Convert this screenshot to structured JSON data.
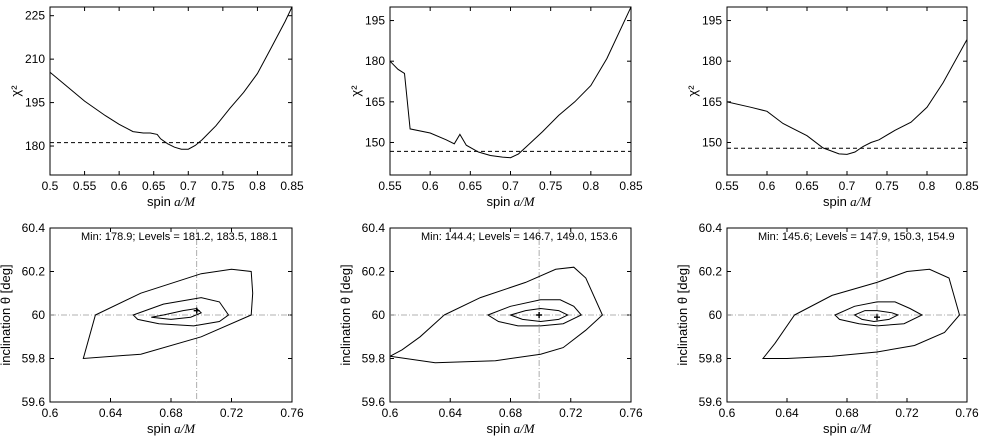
{
  "chart_data": [
    {
      "type": "line",
      "xlabel": "spin a/M",
      "ylabel": "χ²",
      "xlim": [
        0.5,
        0.85
      ],
      "ylim": [
        170,
        228
      ],
      "xticks": [
        "0.5",
        "0.55",
        "0.6",
        "0.65",
        "0.7",
        "0.75",
        "0.8",
        "0.85"
      ],
      "yticks": [
        "180",
        "195",
        "210",
        "225"
      ],
      "series": [
        {
          "style": "solid",
          "x": [
            0.5,
            0.52,
            0.55,
            0.58,
            0.6,
            0.62,
            0.635,
            0.645,
            0.655,
            0.66,
            0.67,
            0.68,
            0.69,
            0.7,
            0.71,
            0.72,
            0.74,
            0.76,
            0.78,
            0.8,
            0.82,
            0.84,
            0.85
          ],
          "y": [
            205.5,
            201.5,
            195.5,
            190.5,
            187.5,
            185.0,
            184.5,
            184.5,
            184.0,
            182.5,
            180.8,
            179.6,
            178.9,
            178.9,
            180.2,
            182.2,
            187.0,
            193.0,
            198.5,
            205.0,
            214.0,
            223.0,
            228.0
          ]
        },
        {
          "style": "dashed",
          "x": [
            0.5,
            0.85
          ],
          "y": [
            181.2,
            181.2
          ]
        }
      ]
    },
    {
      "type": "line",
      "xlabel": "spin a/M",
      "ylabel": "χ²",
      "xlim": [
        0.55,
        0.85
      ],
      "ylim": [
        138,
        200
      ],
      "xticks": [
        "0.55",
        "0.6",
        "0.65",
        "0.7",
        "0.75",
        "0.8",
        "0.85"
      ],
      "yticks": [
        "150",
        "165",
        "180",
        "195"
      ],
      "series": [
        {
          "style": "solid",
          "x": [
            0.55,
            0.56,
            0.568,
            0.575,
            0.6,
            0.62,
            0.63,
            0.637,
            0.645,
            0.66,
            0.675,
            0.69,
            0.7,
            0.71,
            0.72,
            0.74,
            0.76,
            0.78,
            0.8,
            0.82,
            0.85
          ],
          "y": [
            180.0,
            177.0,
            175.5,
            155.0,
            153.5,
            151.0,
            149.5,
            153.0,
            149.0,
            146.5,
            145.2,
            144.6,
            144.4,
            145.8,
            148.5,
            154.0,
            160.0,
            165.0,
            171.0,
            181.0,
            200.0
          ]
        },
        {
          "style": "dashed",
          "x": [
            0.55,
            0.85
          ],
          "y": [
            146.7,
            146.7
          ]
        }
      ]
    },
    {
      "type": "line",
      "xlabel": "spin a/M",
      "ylabel": "χ²",
      "xlim": [
        0.55,
        0.85
      ],
      "ylim": [
        138,
        200
      ],
      "xticks": [
        "0.55",
        "0.6",
        "0.65",
        "0.7",
        "0.75",
        "0.8",
        "0.85"
      ],
      "yticks": [
        "150",
        "165",
        "180",
        "195"
      ],
      "series": [
        {
          "style": "solid",
          "x": [
            0.55,
            0.58,
            0.6,
            0.62,
            0.65,
            0.67,
            0.69,
            0.7,
            0.71,
            0.72,
            0.73,
            0.74,
            0.76,
            0.78,
            0.8,
            0.82,
            0.85
          ],
          "y": [
            165.0,
            163.0,
            161.5,
            157.0,
            152.5,
            148.0,
            145.8,
            145.6,
            146.5,
            148.5,
            150.0,
            151.0,
            154.5,
            157.5,
            163.0,
            172.0,
            188.0
          ]
        },
        {
          "style": "dashed",
          "x": [
            0.55,
            0.85
          ],
          "y": [
            147.9,
            147.9
          ]
        }
      ]
    },
    {
      "type": "scatter",
      "xlabel": "spin a/M",
      "ylabel": "inclination θ [deg]",
      "xlim": [
        0.6,
        0.76
      ],
      "ylim": [
        59.6,
        60.4
      ],
      "xticks": [
        "0.6",
        "0.64",
        "0.68",
        "0.72",
        "0.76"
      ],
      "yticks": [
        "59.6",
        "59.8",
        "60",
        "60.2",
        "60.4"
      ],
      "annotation": "Min: 178.9; Levels = 181.2, 183.5, 188.1",
      "best_fit": [
        0.697,
        60.02
      ],
      "contours": [
        {
          "x": [
            0.675,
            0.688,
            0.697,
            0.7,
            0.693,
            0.68,
            0.667,
            0.675
          ],
          "y": [
            60.0,
            60.02,
            60.03,
            60.01,
            59.99,
            59.98,
            59.99,
            60.0
          ]
        },
        {
          "x": [
            0.655,
            0.675,
            0.7,
            0.712,
            0.718,
            0.712,
            0.695,
            0.672,
            0.658,
            0.655
          ],
          "y": [
            60.0,
            60.05,
            60.08,
            60.06,
            60.0,
            59.97,
            59.95,
            59.96,
            59.98,
            60.0
          ]
        },
        {
          "x": [
            0.63,
            0.66,
            0.7,
            0.72,
            0.733,
            0.734,
            0.733,
            0.7,
            0.66,
            0.622,
            0.63
          ],
          "y": [
            60.0,
            60.1,
            60.19,
            60.21,
            60.2,
            60.1,
            60.0,
            59.9,
            59.82,
            59.8,
            60.0
          ]
        }
      ]
    },
    {
      "type": "scatter",
      "xlabel": "spin a/M",
      "ylabel": "inclination θ [deg]",
      "xlim": [
        0.6,
        0.76
      ],
      "ylim": [
        59.6,
        60.4
      ],
      "xticks": [
        "0.6",
        "0.64",
        "0.68",
        "0.72",
        "0.76"
      ],
      "yticks": [
        "59.6",
        "59.8",
        "60",
        "60.2",
        "60.4"
      ],
      "annotation": "Min: 144.4; Levels = 146.7, 149.0, 153.6",
      "best_fit": [
        0.699,
        60.0
      ],
      "contours": [
        {
          "x": [
            0.68,
            0.69,
            0.7,
            0.712,
            0.718,
            0.712,
            0.7,
            0.688,
            0.68
          ],
          "y": [
            60.0,
            60.02,
            60.03,
            60.02,
            60.0,
            59.98,
            59.97,
            59.98,
            60.0
          ]
        },
        {
          "x": [
            0.665,
            0.68,
            0.7,
            0.713,
            0.722,
            0.727,
            0.715,
            0.7,
            0.685,
            0.672,
            0.665
          ],
          "y": [
            60.0,
            60.04,
            60.07,
            60.07,
            60.04,
            60.0,
            59.96,
            59.95,
            59.95,
            59.97,
            60.0
          ]
        },
        {
          "x": [
            0.636,
            0.66,
            0.69,
            0.71,
            0.722,
            0.73,
            0.741,
            0.73,
            0.715,
            0.7,
            0.67,
            0.63,
            0.6,
            0.608,
            0.62,
            0.636
          ],
          "y": [
            60.0,
            60.08,
            60.15,
            60.21,
            60.22,
            60.17,
            60.0,
            59.93,
            59.85,
            59.82,
            59.79,
            59.78,
            59.81,
            59.84,
            59.9,
            60.0
          ]
        }
      ]
    },
    {
      "type": "scatter",
      "xlabel": "spin a/M",
      "ylabel": "inclination θ [deg]",
      "xlim": [
        0.6,
        0.76
      ],
      "ylim": [
        59.6,
        60.4
      ],
      "xticks": [
        "0.6",
        "0.64",
        "0.68",
        "0.72",
        "0.76"
      ],
      "yticks": [
        "59.6",
        "59.8",
        "60",
        "60.2",
        "60.4"
      ],
      "annotation": "Min: 145.6; Levels = 147.9, 150.3, 154.9",
      "best_fit": [
        0.7,
        59.99
      ],
      "contours": [
        {
          "x": [
            0.685,
            0.692,
            0.7,
            0.71,
            0.714,
            0.708,
            0.698,
            0.69,
            0.685
          ],
          "y": [
            60.0,
            60.02,
            60.02,
            60.01,
            60.0,
            59.98,
            59.97,
            59.98,
            60.0
          ]
        },
        {
          "x": [
            0.672,
            0.685,
            0.7,
            0.712,
            0.722,
            0.73,
            0.718,
            0.7,
            0.688,
            0.675,
            0.672
          ],
          "y": [
            60.0,
            60.04,
            60.06,
            60.06,
            60.03,
            60.0,
            59.96,
            59.95,
            59.96,
            59.98,
            60.0
          ]
        },
        {
          "x": [
            0.645,
            0.67,
            0.7,
            0.72,
            0.735,
            0.748,
            0.755,
            0.745,
            0.725,
            0.7,
            0.67,
            0.64,
            0.624,
            0.632,
            0.645
          ],
          "y": [
            60.0,
            60.09,
            60.15,
            60.2,
            60.21,
            60.17,
            60.0,
            59.92,
            59.86,
            59.83,
            59.81,
            59.8,
            59.8,
            59.87,
            60.0
          ]
        }
      ]
    }
  ]
}
